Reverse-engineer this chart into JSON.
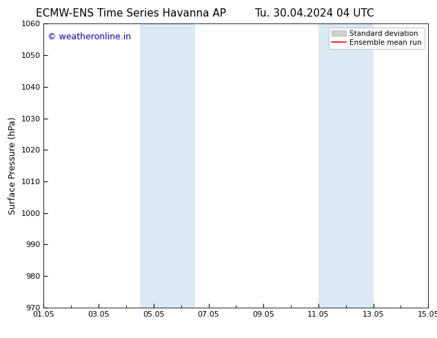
{
  "title_left": "ECMW-ENS Time Series Havanna AP",
  "title_right": "Tu. 30.04.2024 04 UTC",
  "ylabel": "Surface Pressure (hPa)",
  "ylim": [
    970,
    1060
  ],
  "yticks": [
    970,
    980,
    990,
    1000,
    1010,
    1020,
    1030,
    1040,
    1050,
    1060
  ],
  "xlim": [
    0,
    14
  ],
  "xtick_labels": [
    "01.05",
    "03.05",
    "05.05",
    "07.05",
    "09.05",
    "11.05",
    "13.05",
    "15.05"
  ],
  "xtick_positions_days": [
    0,
    2,
    4,
    6,
    8,
    10,
    12,
    14
  ],
  "shaded_bands": [
    {
      "x_start_days": 3.5,
      "x_end_days": 5.5
    },
    {
      "x_start_days": 10.0,
      "x_end_days": 12.0
    }
  ],
  "shaded_color": "#daeaf5",
  "watermark_text": "© weatheronline.in",
  "watermark_color": "#0000cc",
  "legend_std_dev_label": "Standard deviation",
  "legend_std_dev_color": "#d0d0d0",
  "legend_mean_label": "Ensemble mean run",
  "legend_mean_color": "#ff0000",
  "background_color": "#ffffff",
  "font_color": "#000000",
  "title_fontsize": 11,
  "axis_label_fontsize": 9,
  "tick_fontsize": 8,
  "watermark_fontsize": 9
}
